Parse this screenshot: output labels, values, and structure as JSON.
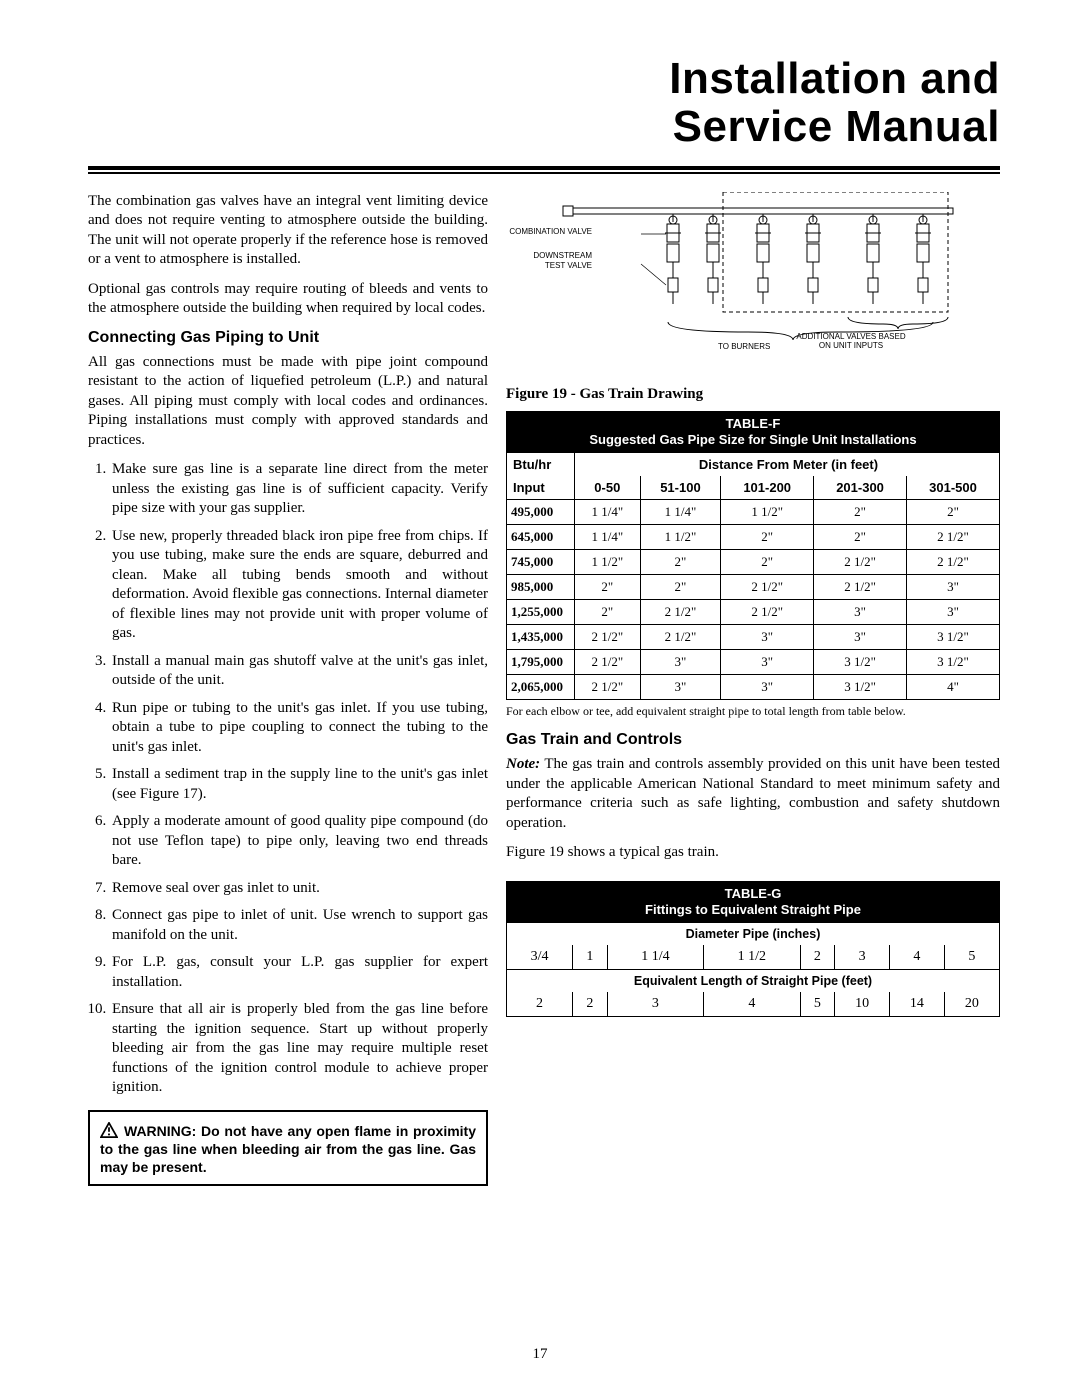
{
  "title_line1": "Installation and",
  "title_line2": "Service Manual",
  "para1": "The combination gas valves have an integral vent limiting device and does not require venting to atmosphere outside the building. The unit will not operate properly if the reference hose is removed or a vent to atmosphere is installed.",
  "para2": "Optional gas controls may require routing of bleeds and vents to the atmosphere outside the building when required by local codes.",
  "h1": "Connecting Gas Piping to Unit",
  "para3": "All gas connections must be made with pipe joint compound resistant to the action of liquefied petroleum (L.P.) and natural gases. All piping must comply with local codes and ordinances. Piping installations must comply with approved standards and practices.",
  "steps": [
    "Make sure gas line is a separate line direct from the meter unless the existing gas line is of sufficient capacity. Verify pipe size with your gas supplier.",
    "Use new, properly threaded black iron pipe free from chips. If you use tubing, make sure the ends are square, deburred and clean. Make all tubing bends smooth and without deformation. Avoid flexible gas connections. Internal diameter of flexible lines may not provide unit with proper volume of gas.",
    "Install a manual main gas shutoff valve at the unit's gas inlet, outside of the unit.",
    "Run pipe or tubing to the unit's gas inlet. If you use tubing, obtain a tube to pipe coupling to connect the tubing to the unit's gas inlet.",
    "Install a sediment trap in the supply line to the unit's gas inlet (see Figure 17).",
    "Apply a moderate amount of good quality pipe compound (do not use Teflon tape) to pipe only, leaving two end threads bare.",
    "Remove seal over gas inlet to unit.",
    "Connect gas pipe to inlet of unit. Use wrench to support gas manifold on the unit.",
    "For L.P. gas, consult your L.P. gas supplier for expert installation.",
    "Ensure that all air is properly bled from the gas line before starting the ignition sequence. Start up without properly bleeding air from the gas line may require multiple reset functions of the ignition control module to achieve proper ignition."
  ],
  "warning": "WARNING: Do not have any open flame in proximity to the gas line when bleeding air from the gas line. Gas may be present.",
  "diagram": {
    "combination_valve": "COMBINATION VALVE",
    "downstream": "DOWNSTREAM",
    "test_valve": "TEST VALVE",
    "to_burners": "TO BURNERS",
    "additional": "ADDITIONAL VALVES BASED\nON UNIT INPUTS"
  },
  "fig19": "Figure 19 - Gas Train Drawing",
  "tableF": {
    "title1": "TABLE-F",
    "title2": "Suggested Gas Pipe Size for Single Unit Installations",
    "btuhr": "Btu/hr",
    "dist": "Distance From Meter (in feet)",
    "input": "Input",
    "cols": [
      "0-50",
      "51-100",
      "101-200",
      "201-300",
      "301-500"
    ],
    "rows": [
      [
        "495,000",
        "1 1/4\"",
        "1 1/4\"",
        "1 1/2\"",
        "2\"",
        "2\""
      ],
      [
        "645,000",
        "1 1/4\"",
        "1 1/2\"",
        "2\"",
        "2\"",
        "2 1/2\""
      ],
      [
        "745,000",
        "1 1/2\"",
        "2\"",
        "2\"",
        "2 1/2\"",
        "2 1/2\""
      ],
      [
        "985,000",
        "2\"",
        "2\"",
        "2 1/2\"",
        "2 1/2\"",
        "3\""
      ],
      [
        "1,255,000",
        "2\"",
        "2 1/2\"",
        "2 1/2\"",
        "3\"",
        "3\""
      ],
      [
        "1,435,000",
        "2 1/2\"",
        "2 1/2\"",
        "3\"",
        "3\"",
        "3 1/2\""
      ],
      [
        "1,795,000",
        "2 1/2\"",
        "3\"",
        "3\"",
        "3 1/2\"",
        "3 1/2\""
      ],
      [
        "2,065,000",
        "2 1/2\"",
        "3\"",
        "3\"",
        "3 1/2\"",
        "4\""
      ]
    ],
    "footnote": "For each elbow or tee, add equivalent straight pipe to total length from table below."
  },
  "h2": "Gas Train and Controls",
  "note_label": "Note:",
  "note_text": " The gas train and controls assembly provided on this unit have been tested under the applicable American National Standard to meet minimum safety and performance criteria such as safe lighting, combustion and safety shutdown operation.",
  "fig19_ref": "Figure 19 shows a typical gas train.",
  "tableG": {
    "title1": "TABLE-G",
    "title2": "Fittings to Equivalent Straight Pipe",
    "sub1": "Diameter Pipe (inches)",
    "row1": [
      "3/4",
      "1",
      "1 1/4",
      "1 1/2",
      "2",
      "3",
      "4",
      "5"
    ],
    "sub2": "Equivalent Length of Straight Pipe (feet)",
    "row2": [
      "2",
      "2",
      "3",
      "4",
      "5",
      "10",
      "14",
      "20"
    ]
  },
  "page": "17"
}
